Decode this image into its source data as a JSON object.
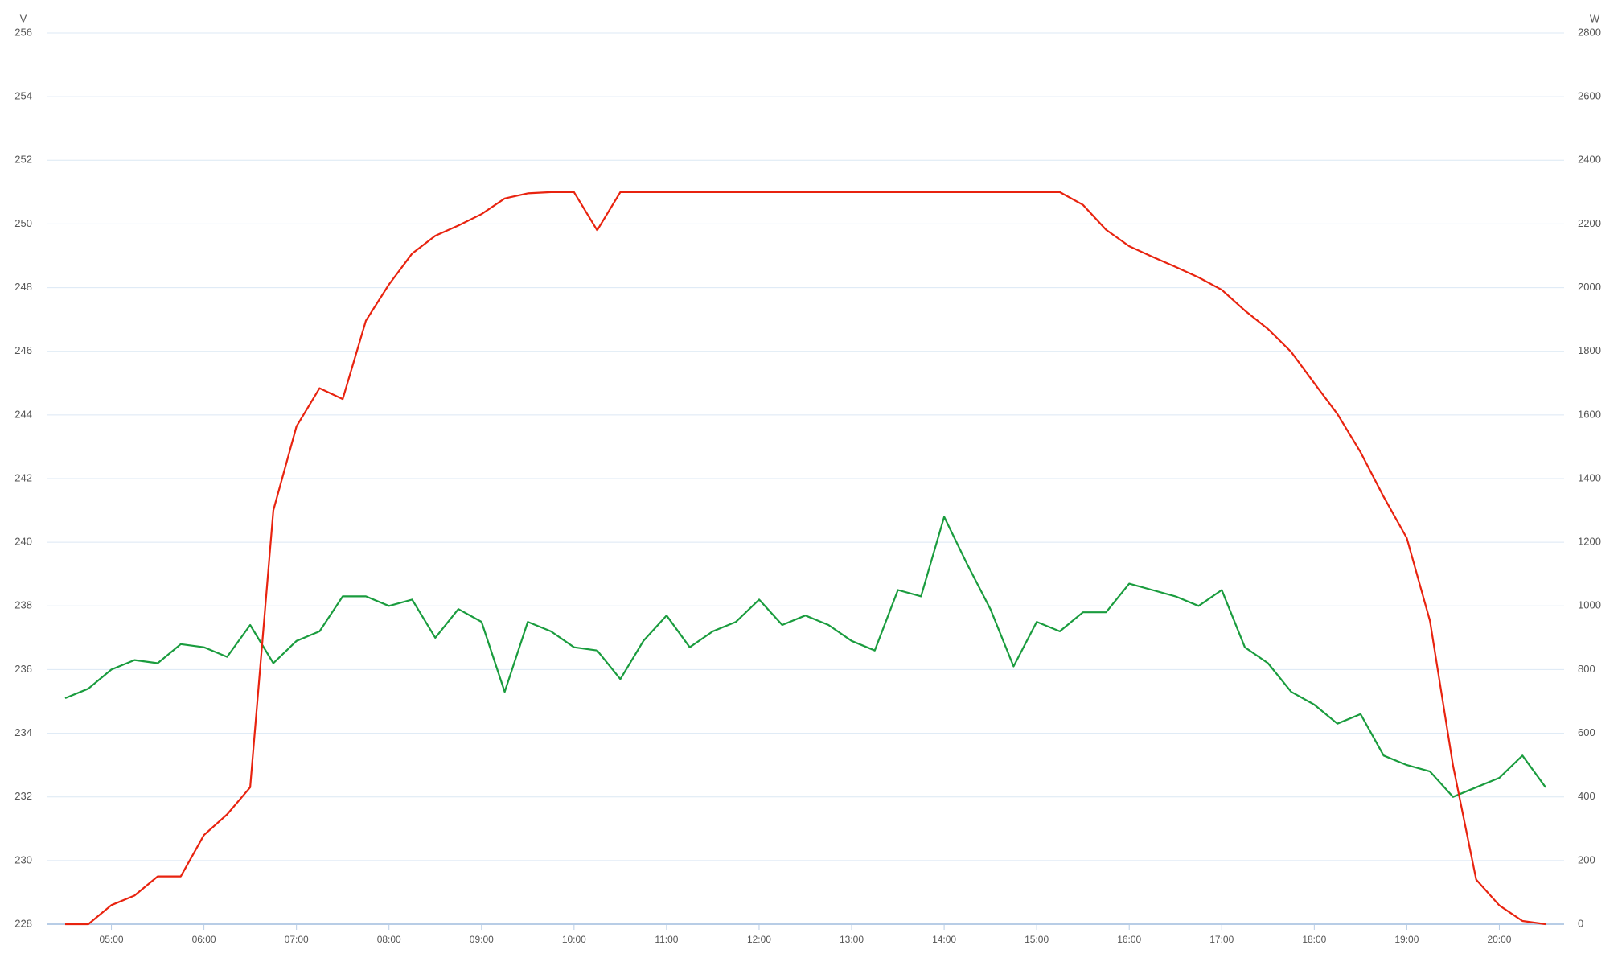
{
  "chart_data": {
    "type": "line",
    "ylabel": "V",
    "y2label": "W",
    "x": [
      270,
      285,
      300,
      315,
      330,
      345,
      360,
      375,
      390,
      405,
      420,
      435,
      450,
      465,
      480,
      495,
      510,
      525,
      540,
      555,
      570,
      585,
      600,
      615,
      630,
      645,
      660,
      675,
      690,
      705,
      720,
      735,
      750,
      765,
      780,
      795,
      810,
      825,
      840,
      855,
      870,
      885,
      900,
      915,
      930,
      945,
      960,
      975,
      990,
      1005,
      1020,
      1035,
      1050,
      1065,
      1080,
      1095,
      1110,
      1125,
      1140,
      1155,
      1170,
      1185,
      1200,
      1215,
      1230
    ],
    "xlim": [
      258,
      1242
    ],
    "xticks": [
      {
        "value": 300,
        "label": "05:00"
      },
      {
        "value": 360,
        "label": "06:00"
      },
      {
        "value": 420,
        "label": "07:00"
      },
      {
        "value": 480,
        "label": "08:00"
      },
      {
        "value": 540,
        "label": "09:00"
      },
      {
        "value": 600,
        "label": "10:00"
      },
      {
        "value": 660,
        "label": "11:00"
      },
      {
        "value": 720,
        "label": "12:00"
      },
      {
        "value": 780,
        "label": "13:00"
      },
      {
        "value": 840,
        "label": "14:00"
      },
      {
        "value": 900,
        "label": "15:00"
      },
      {
        "value": 960,
        "label": "16:00"
      },
      {
        "value": 1020,
        "label": "17:00"
      },
      {
        "value": 1080,
        "label": "18:00"
      },
      {
        "value": 1140,
        "label": "19:00"
      },
      {
        "value": 1200,
        "label": "20:00"
      }
    ],
    "ylim": [
      228,
      256
    ],
    "yticks": [
      228,
      230,
      232,
      234,
      236,
      238,
      240,
      242,
      244,
      246,
      248,
      250,
      252,
      254,
      256
    ],
    "y2lim": [
      0,
      2800
    ],
    "y2ticks": [
      0,
      200,
      400,
      600,
      800,
      1000,
      1200,
      1400,
      1600,
      1800,
      2000,
      2200,
      2400,
      2600,
      2800
    ],
    "grid": true,
    "series": [
      {
        "color": "#1a9c3e",
        "axis": "y",
        "values": [
          235.1,
          235.4,
          236.0,
          236.3,
          236.2,
          236.8,
          236.7,
          236.4,
          237.4,
          236.2,
          236.9,
          237.2,
          238.3,
          238.3,
          238.0,
          238.2,
          237.0,
          237.9,
          237.5,
          235.3,
          237.5,
          237.2,
          236.7,
          236.6,
          235.7,
          236.9,
          237.7,
          236.7,
          237.2,
          237.5,
          238.2,
          237.4,
          237.7,
          237.4,
          236.9,
          236.6,
          238.5,
          238.3,
          240.8,
          239.3,
          237.9,
          236.1,
          237.5,
          237.2,
          237.8,
          237.8,
          238.7,
          238.5,
          238.3,
          238.0,
          238.5,
          236.7,
          236.2,
          235.3,
          234.9,
          234.3,
          234.6,
          233.3,
          233.0,
          232.8,
          232.0,
          232.3,
          232.6,
          233.3,
          232.3
        ]
      },
      {
        "color": "#e8230f",
        "axis": "y2",
        "values": [
          0,
          0,
          60,
          90,
          150,
          150,
          280,
          345,
          430,
          1300,
          1564,
          1684,
          1650,
          1896,
          2010,
          2107,
          2163,
          2195,
          2231,
          2280,
          2296,
          2300,
          2300,
          2180,
          2300,
          2300,
          2300,
          2300,
          2300,
          2300,
          2300,
          2300,
          2300,
          2300,
          2300,
          2300,
          2300,
          2300,
          2300,
          2300,
          2300,
          2300,
          2300,
          2300,
          2260,
          2182,
          2130,
          2097,
          2065,
          2032,
          1993,
          1928,
          1870,
          1798,
          1700,
          1603,
          1483,
          1343,
          1213,
          953,
          498,
          140,
          59,
          10,
          0
        ]
      }
    ]
  }
}
